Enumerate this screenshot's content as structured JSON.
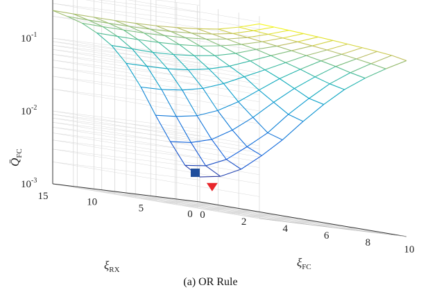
{
  "caption": "(a) OR Rule",
  "chart_data": {
    "type": "surface",
    "xlabel": "ξ_FC",
    "ylabel": "ξ_RX",
    "zlabel": "Q̄_FC",
    "x_ticks": [
      "0",
      "2",
      "4",
      "6",
      "8",
      "10"
    ],
    "y_ticks": [
      "0",
      "5",
      "10",
      "15"
    ],
    "z_ticks": [
      "10^-3",
      "10^-2",
      "10^-1"
    ],
    "xlim": [
      0,
      10
    ],
    "ylim": [
      0,
      15
    ],
    "zlim": [
      0.001,
      0.6
    ],
    "zscale": "log",
    "grid": true,
    "colormap": "parula",
    "x": [
      0,
      1,
      2,
      3,
      4,
      5,
      6,
      7,
      8,
      9,
      10
    ],
    "y": [
      0,
      1.5,
      3,
      4.5,
      6,
      7.5,
      9,
      10.5,
      12,
      13.5,
      15
    ],
    "markers": [
      {
        "symbol": "square",
        "color": "#1f4e9c",
        "x": 0,
        "y": 0,
        "z": 0.0022
      },
      {
        "symbol": "triangle-down",
        "color": "#e8262b",
        "x": 0.6,
        "y": 0,
        "z": 0.0017
      }
    ],
    "z_note": "grid of Q̄_FC values below, rows indexed by ξ_RX (y), columns by ξ_FC (x)",
    "z": [
      [
        0.0022,
        0.0025,
        0.0035,
        0.006,
        0.011,
        0.022,
        0.042,
        0.075,
        0.12,
        0.18,
        0.26
      ],
      [
        0.003,
        0.0033,
        0.0045,
        0.0075,
        0.013,
        0.026,
        0.048,
        0.085,
        0.135,
        0.2,
        0.29
      ],
      [
        0.006,
        0.0065,
        0.008,
        0.012,
        0.02,
        0.036,
        0.062,
        0.1,
        0.155,
        0.22,
        0.31
      ],
      [
        0.013,
        0.014,
        0.016,
        0.021,
        0.031,
        0.05,
        0.08,
        0.12,
        0.175,
        0.24,
        0.33
      ],
      [
        0.03,
        0.031,
        0.034,
        0.04,
        0.052,
        0.072,
        0.1,
        0.14,
        0.195,
        0.26,
        0.35
      ],
      [
        0.06,
        0.061,
        0.063,
        0.068,
        0.078,
        0.095,
        0.125,
        0.165,
        0.215,
        0.28,
        0.37
      ],
      [
        0.1,
        0.1,
        0.1,
        0.104,
        0.112,
        0.125,
        0.15,
        0.19,
        0.235,
        0.3,
        0.39
      ],
      [
        0.14,
        0.14,
        0.141,
        0.144,
        0.15,
        0.16,
        0.18,
        0.21,
        0.255,
        0.32,
        0.41
      ],
      [
        0.18,
        0.18,
        0.181,
        0.183,
        0.188,
        0.197,
        0.21,
        0.235,
        0.275,
        0.34,
        0.43
      ],
      [
        0.21,
        0.21,
        0.211,
        0.213,
        0.218,
        0.226,
        0.24,
        0.26,
        0.295,
        0.36,
        0.45
      ],
      [
        0.24,
        0.24,
        0.241,
        0.243,
        0.248,
        0.256,
        0.27,
        0.29,
        0.32,
        0.38,
        0.47
      ]
    ]
  }
}
